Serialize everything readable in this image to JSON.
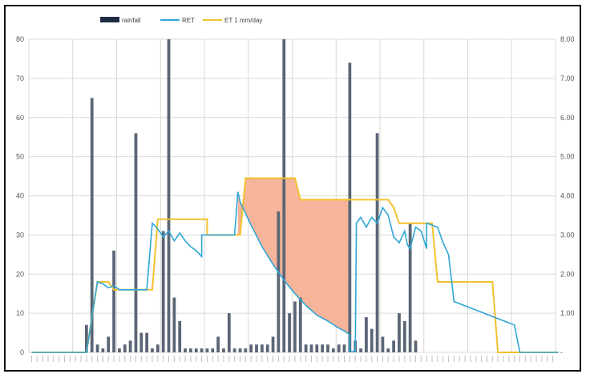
{
  "colors": {
    "rainfall": "#5a6675",
    "ret": "#2fa6d6",
    "et_mm_day": "#f2c12e",
    "deficit_fill": "#f6b49b",
    "grid": "#d9d9d9"
  },
  "chart_data": {
    "type": "bar",
    "title": "",
    "legend": {
      "placement": "top",
      "entries": [
        "rainfall",
        "RET",
        "ET 1 mm/day"
      ]
    },
    "x_count": 96,
    "x_tick_labels_legible": false,
    "y_left": {
      "range": [
        0,
        80
      ],
      "ticks": [
        "0",
        "10",
        "20",
        "30",
        "40",
        "50",
        "60",
        "70",
        "80"
      ]
    },
    "y_right": {
      "range": [
        0,
        8
      ],
      "ticks": [
        "-",
        "1.00",
        "2.00",
        "3.00",
        "4.00",
        "5.00",
        "6.00",
        "7.00",
        "8.00"
      ]
    },
    "grid": true,
    "series": [
      {
        "name": "rainfall",
        "type": "bar",
        "axis": "left",
        "points": [
          [
            10,
            7
          ],
          [
            11,
            65
          ],
          [
            12,
            2
          ],
          [
            13,
            1
          ],
          [
            14,
            4
          ],
          [
            15,
            26
          ],
          [
            16,
            1
          ],
          [
            17,
            2
          ],
          [
            18,
            3
          ],
          [
            19,
            56
          ],
          [
            20,
            5
          ],
          [
            21,
            5
          ],
          [
            22,
            1
          ],
          [
            23,
            2
          ],
          [
            24,
            31
          ],
          [
            25,
            80
          ],
          [
            26,
            14
          ],
          [
            27,
            8
          ],
          [
            28,
            1
          ],
          [
            29,
            1
          ],
          [
            30,
            1
          ],
          [
            31,
            1
          ],
          [
            32,
            1
          ],
          [
            33,
            1
          ],
          [
            34,
            4
          ],
          [
            35,
            1
          ],
          [
            36,
            10
          ],
          [
            37,
            1
          ],
          [
            38,
            1
          ],
          [
            39,
            1
          ],
          [
            40,
            2
          ],
          [
            41,
            2
          ],
          [
            42,
            2
          ],
          [
            43,
            2
          ],
          [
            44,
            4
          ],
          [
            45,
            36
          ],
          [
            46,
            80
          ],
          [
            47,
            10
          ],
          [
            48,
            13
          ],
          [
            49,
            14
          ],
          [
            50,
            2
          ],
          [
            51,
            2
          ],
          [
            52,
            2
          ],
          [
            53,
            2
          ],
          [
            54,
            2
          ],
          [
            55,
            1
          ],
          [
            56,
            2
          ],
          [
            57,
            2
          ],
          [
            58,
            74
          ],
          [
            59,
            3
          ],
          [
            60,
            1
          ],
          [
            61,
            9
          ],
          [
            62,
            6
          ],
          [
            63,
            56
          ],
          [
            64,
            4
          ],
          [
            65,
            1
          ],
          [
            66,
            3
          ],
          [
            67,
            10
          ],
          [
            68,
            8
          ],
          [
            69,
            33
          ],
          [
            70,
            3
          ]
        ]
      },
      {
        "name": "RET",
        "type": "line",
        "axis": "right",
        "points": [
          [
            0,
            0
          ],
          [
            10,
            0
          ],
          [
            12,
            1.8
          ],
          [
            13,
            1.75
          ],
          [
            14,
            1.65
          ],
          [
            15,
            1.7
          ],
          [
            16,
            1.6
          ],
          [
            21,
            1.6
          ],
          [
            22,
            3.3
          ],
          [
            23,
            3.15
          ],
          [
            24,
            2.95
          ],
          [
            25,
            3.1
          ],
          [
            26,
            2.85
          ],
          [
            27,
            3.05
          ],
          [
            28,
            2.85
          ],
          [
            29,
            2.7
          ],
          [
            30,
            2.6
          ],
          [
            31,
            2.45
          ],
          [
            31,
            3.0
          ],
          [
            37,
            3.0
          ],
          [
            37.6,
            4.1
          ],
          [
            38,
            3.85
          ],
          [
            40,
            3.25
          ],
          [
            42,
            2.7
          ],
          [
            44,
            2.25
          ],
          [
            46,
            1.85
          ],
          [
            48,
            1.5
          ],
          [
            50,
            1.2
          ],
          [
            52,
            0.95
          ],
          [
            54,
            0.8
          ],
          [
            56,
            0.62
          ],
          [
            57,
            0.55
          ],
          [
            58,
            0.45
          ],
          [
            58,
            0.02
          ],
          [
            59,
            0.02
          ],
          [
            59.2,
            3.3
          ],
          [
            60,
            3.45
          ],
          [
            61,
            3.2
          ],
          [
            62,
            3.45
          ],
          [
            63,
            3.3
          ],
          [
            64,
            3.7
          ],
          [
            65,
            3.5
          ],
          [
            66,
            2.95
          ],
          [
            67,
            2.8
          ],
          [
            68,
            3.1
          ],
          [
            68.5,
            2.75
          ],
          [
            69,
            2.65
          ],
          [
            70,
            3.2
          ],
          [
            71,
            3.1
          ],
          [
            72,
            2.65
          ],
          [
            72,
            3.3
          ],
          [
            74,
            3.2
          ],
          [
            75,
            2.8
          ],
          [
            76,
            2.5
          ],
          [
            77,
            1.3
          ],
          [
            88,
            0.7
          ],
          [
            89,
            0.0
          ],
          [
            96,
            0.0
          ]
        ]
      },
      {
        "name": "ET 1 mm/day",
        "type": "step",
        "axis": "right",
        "points": [
          [
            0,
            0
          ],
          [
            10,
            0
          ],
          [
            12,
            1.8
          ],
          [
            14,
            1.8
          ],
          [
            15,
            1.6
          ],
          [
            22,
            1.6
          ],
          [
            23,
            3.4
          ],
          [
            32,
            3.4
          ],
          [
            32,
            3.0
          ],
          [
            38,
            3.0
          ],
          [
            39,
            4.45
          ],
          [
            48,
            4.45
          ],
          [
            49,
            3.9
          ],
          [
            58,
            3.9
          ],
          [
            59,
            3.9
          ],
          [
            65,
            3.9
          ],
          [
            66,
            3.7
          ],
          [
            67,
            3.3
          ],
          [
            72,
            3.3
          ],
          [
            73,
            3.3
          ],
          [
            74,
            1.8
          ],
          [
            84,
            1.8
          ],
          [
            85,
            0.0
          ],
          [
            96,
            0.0
          ]
        ]
      }
    ]
  }
}
